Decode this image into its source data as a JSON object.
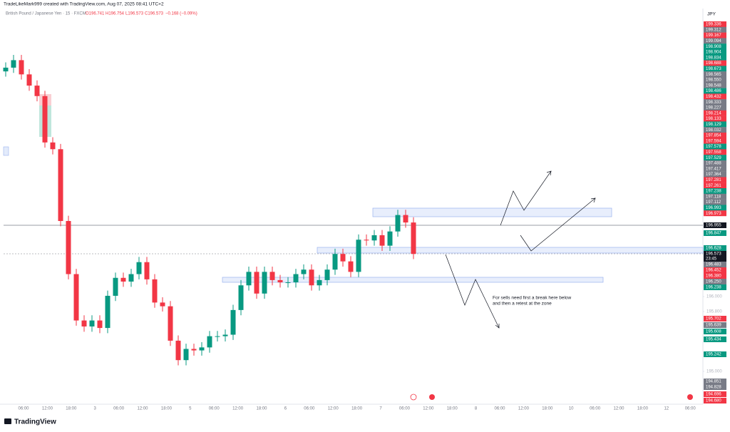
{
  "header": {
    "attribution": "TradeLikeMark999 created with TradingView.com, Aug 07, 2025 08:41 UTC+2",
    "symbol": "British Pound / Japanese Yen · 15 · FXCM",
    "ohlc": [
      "O196.741",
      "H196.754",
      "L196.573",
      "C196.573",
      "−0.168 (−0.09%)"
    ]
  },
  "chart_data": {
    "type": "candlestick",
    "currency": "JPY",
    "open": [
      199.01,
      199.06,
      199.16,
      198.97,
      198.82,
      198.68,
      198.06,
      197.97,
      197.01,
      196.3,
      195.68,
      195.6,
      195.68,
      195.58,
      196.01,
      196.25,
      196.2,
      196.3,
      196.46,
      196.23,
      195.92,
      195.87,
      195.41,
      195.15,
      195.3,
      195.28,
      195.32,
      195.47,
      195.47,
      195.49,
      195.82,
      196.15,
      196.33,
      196.04,
      196.33,
      196.22,
      196.19,
      196.19,
      196.3,
      196.36,
      196.15,
      196.22,
      196.36,
      196.57,
      196.47,
      196.33,
      196.76,
      196.75,
      196.82,
      196.68,
      196.87,
      197.09,
      196.99
    ],
    "high": [
      199.13,
      199.23,
      199.23,
      199.04,
      198.89,
      198.75,
      198.13,
      198.04,
      197.08,
      196.37,
      195.75,
      195.75,
      195.75,
      196.08,
      196.32,
      196.32,
      196.37,
      196.53,
      196.53,
      196.3,
      195.99,
      195.94,
      195.48,
      195.37,
      195.37,
      195.39,
      195.54,
      195.54,
      195.56,
      195.89,
      196.22,
      196.4,
      196.4,
      196.4,
      196.4,
      196.29,
      196.26,
      196.37,
      196.43,
      196.43,
      196.29,
      196.43,
      196.64,
      196.64,
      196.54,
      196.83,
      196.83,
      196.89,
      196.89,
      196.94,
      197.16,
      197.16,
      197.06
    ],
    "low": [
      198.94,
      198.99,
      198.9,
      198.75,
      198.61,
      197.99,
      197.9,
      196.94,
      196.23,
      195.61,
      195.53,
      195.53,
      195.51,
      195.51,
      195.94,
      196.13,
      196.13,
      196.23,
      196.16,
      195.85,
      195.8,
      195.34,
      195.08,
      195.08,
      195.21,
      195.21,
      195.25,
      195.4,
      195.4,
      195.42,
      195.75,
      196.08,
      195.97,
      195.97,
      196.15,
      196.12,
      196.12,
      196.12,
      196.23,
      196.08,
      196.08,
      196.15,
      196.29,
      196.4,
      196.26,
      196.26,
      196.68,
      196.68,
      196.61,
      196.61,
      196.8,
      196.92,
      196.5
    ],
    "close": [
      199.06,
      199.16,
      198.97,
      198.82,
      198.68,
      198.06,
      197.97,
      197.01,
      196.3,
      195.68,
      195.6,
      195.68,
      195.58,
      196.01,
      196.25,
      196.2,
      196.3,
      196.46,
      196.23,
      195.92,
      195.87,
      195.41,
      195.15,
      195.3,
      195.28,
      195.32,
      195.47,
      195.47,
      195.49,
      195.82,
      196.15,
      196.33,
      196.04,
      196.33,
      196.22,
      196.19,
      196.19,
      196.3,
      196.36,
      196.15,
      196.22,
      196.36,
      196.57,
      196.47,
      196.33,
      196.76,
      196.75,
      196.82,
      196.68,
      196.87,
      197.09,
      196.99,
      196.57
    ],
    "up_color": "#089981",
    "down_color": "#f23645",
    "ylim": [
      194.58,
      199.85
    ],
    "yticks": [
      {
        "value": 196,
        "label": "196.000"
      },
      {
        "value": 195.8,
        "label": "195.800"
      },
      {
        "value": 195,
        "label": "195.000"
      }
    ],
    "grid": false,
    "x_labels": [
      "06:00",
      "12:00",
      "18:00",
      "3",
      "06:00",
      "12:00",
      "18:00",
      "5",
      "06:00",
      "12:00",
      "18:00",
      "6",
      "06:00",
      "12:00",
      "18:00",
      "7",
      "06:00",
      "12:00",
      "18:00",
      "8",
      "06:00",
      "12:00",
      "18:00",
      "10",
      "06:00",
      "12:00",
      "18:00",
      "12",
      "06:00"
    ]
  },
  "right_labels": [
    {
      "text": "199.336",
      "color": "#f23645"
    },
    {
      "text": "199.312",
      "color": "#787b86"
    },
    {
      "text": "199.167",
      "color": "#f23645"
    },
    {
      "text": "199.094",
      "color": "#787b86"
    },
    {
      "text": "198.908",
      "color": "#089981"
    },
    {
      "text": "198.904",
      "color": "#089981"
    },
    {
      "text": "198.834",
      "color": "#089981"
    },
    {
      "text": "198.688",
      "color": "#f23645"
    },
    {
      "text": "198.673",
      "color": "#089981"
    },
    {
      "text": "198.565",
      "color": "#787b86"
    },
    {
      "text": "198.550",
      "color": "#787b86"
    },
    {
      "text": "198.548",
      "color": "#787b86"
    },
    {
      "text": "198.486",
      "color": "#089981"
    },
    {
      "text": "198.432",
      "color": "#f23645"
    },
    {
      "text": "198.333",
      "color": "#787b86"
    },
    {
      "text": "198.227",
      "color": "#787b86"
    },
    {
      "text": "198.214",
      "color": "#f23645"
    },
    {
      "text": "198.133",
      "color": "#f23645"
    },
    {
      "text": "198.129",
      "color": "#089981"
    },
    {
      "text": "198.032",
      "color": "#787b86"
    },
    {
      "text": "197.854",
      "color": "#f23645"
    },
    {
      "text": "197.594",
      "color": "#f23645"
    },
    {
      "text": "197.578",
      "color": "#089981"
    },
    {
      "text": "197.558",
      "color": "#f23645"
    },
    {
      "text": "197.529",
      "color": "#089981"
    },
    {
      "text": "197.488",
      "color": "#787b86"
    },
    {
      "text": "197.417",
      "color": "#787b86"
    },
    {
      "text": "197.364",
      "color": "#787b86"
    },
    {
      "text": "197.281",
      "color": "#f23645"
    },
    {
      "text": "197.261",
      "color": "#f23645"
    },
    {
      "text": "197.238",
      "color": "#089981"
    },
    {
      "text": "197.118",
      "color": "#787b86"
    },
    {
      "text": "197.112",
      "color": "#787b86"
    },
    {
      "text": "196.993",
      "color": "#089981"
    },
    {
      "text": "196.973",
      "color": "#f23645"
    },
    {
      "text": "196.955",
      "color": "#131722"
    },
    {
      "text": "196.847",
      "color": "#089981"
    },
    {
      "text": "196.628",
      "color": "#089981"
    },
    {
      "text": "196.573",
      "color": "#131722"
    },
    {
      "text": "23:45",
      "color": "#131722"
    },
    {
      "text": "196.483",
      "color": "#787b86"
    },
    {
      "text": "196.452",
      "color": "#f23645"
    },
    {
      "text": "196.380",
      "color": "#f23645"
    },
    {
      "text": "196.250",
      "color": "#787b86"
    },
    {
      "text": "196.238",
      "color": "#089981"
    },
    {
      "text": "195.702",
      "color": "#f23645"
    },
    {
      "text": "195.639",
      "color": "#787b86"
    },
    {
      "text": "195.608",
      "color": "#089981"
    },
    {
      "text": "195.434",
      "color": "#089981"
    },
    {
      "text": "195.242",
      "color": "#089981"
    },
    {
      "text": "194.851",
      "color": "#787b86"
    },
    {
      "text": "194.828",
      "color": "#787b86"
    },
    {
      "text": "194.696",
      "color": "#f23645"
    },
    {
      "text": "194.680",
      "color": "#f23645"
    }
  ],
  "annotation": [
    "For sells need first a break here below",
    "and then a retest at the zone"
  ],
  "footer": {
    "logo": "TradingView"
  }
}
